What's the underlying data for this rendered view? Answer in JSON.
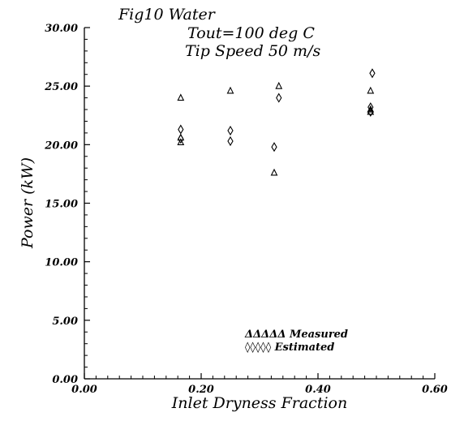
{
  "chart_data": {
    "type": "scatter",
    "title_lines": [
      "Fig10 Water",
      "Tout=100 deg C",
      "Tip Speed 50 m/s"
    ],
    "xlabel": "Inlet Dryness Fraction",
    "ylabel": "Power (kW)",
    "xlim": [
      0.0,
      0.6
    ],
    "ylim": [
      0.0,
      30.0
    ],
    "xticks": [
      "0.00",
      "0.20",
      "0.40",
      "0.60"
    ],
    "yticks": [
      "0.00",
      "5.00",
      "10.00",
      "15.00",
      "20.00",
      "25.00",
      "30.00"
    ],
    "legend_position": "bottom-center",
    "series": [
      {
        "name": "Measured",
        "legend_label": "ΔΔΔΔΔ Measured",
        "marker": "triangle",
        "points": [
          {
            "x": 0.165,
            "y": 24.0
          },
          {
            "x": 0.165,
            "y": 20.6
          },
          {
            "x": 0.165,
            "y": 20.2
          },
          {
            "x": 0.25,
            "y": 24.6
          },
          {
            "x": 0.325,
            "y": 17.6
          },
          {
            "x": 0.333,
            "y": 25.0
          },
          {
            "x": 0.49,
            "y": 24.6
          },
          {
            "x": 0.49,
            "y": 23.0
          },
          {
            "x": 0.49,
            "y": 22.8
          }
        ]
      },
      {
        "name": "Estimated",
        "legend_label": "◊◊◊◊◊ Estimated",
        "marker": "diamond",
        "points": [
          {
            "x": 0.165,
            "y": 21.3
          },
          {
            "x": 0.165,
            "y": 20.5
          },
          {
            "x": 0.25,
            "y": 21.2
          },
          {
            "x": 0.25,
            "y": 20.3
          },
          {
            "x": 0.325,
            "y": 19.8
          },
          {
            "x": 0.333,
            "y": 24.0
          },
          {
            "x": 0.493,
            "y": 26.1
          },
          {
            "x": 0.49,
            "y": 23.2
          },
          {
            "x": 0.49,
            "y": 22.8
          }
        ]
      }
    ]
  }
}
